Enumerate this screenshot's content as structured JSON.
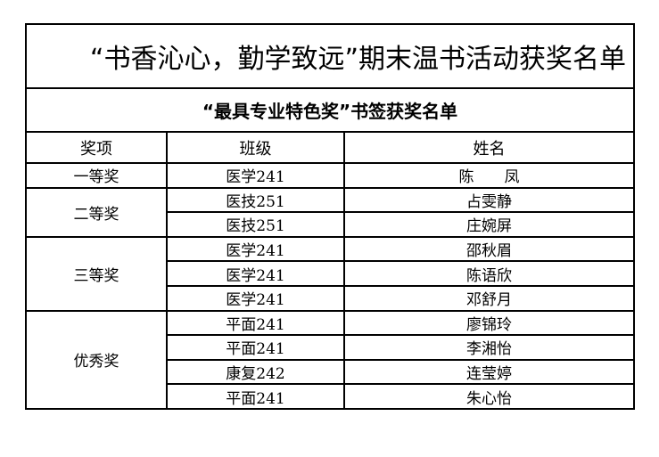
{
  "title": "“书香沁心，勤学致远”期末温书活动获奖名单",
  "subtitle": "“最具专业特色奖”书签获奖名单",
  "headers": [
    "奖项",
    "班级",
    "姓名"
  ],
  "groups": [
    {
      "award": "一等奖",
      "rows": [
        {
          "class": "医学241",
          "name": "陈　　凤"
        }
      ]
    },
    {
      "award": "二等奖",
      "rows": [
        {
          "class": "医技251",
          "name": "占雯静"
        },
        {
          "class": "医技251",
          "name": "庄婉屏"
        }
      ]
    },
    {
      "award": "三等奖",
      "rows": [
        {
          "class": "医学241",
          "name": "邵秋眉"
        },
        {
          "class": "医学241",
          "name": "陈语欣"
        },
        {
          "class": "医学241",
          "name": "邓舒月"
        }
      ]
    },
    {
      "award": "优秀奖",
      "rows": [
        {
          "class": "平面241",
          "name": "廖锦玲"
        },
        {
          "class": "平面241",
          "name": "李湘怡"
        },
        {
          "class": "康复242",
          "name": "连莹婷"
        },
        {
          "class": "平面241",
          "name": "朱心怡"
        }
      ]
    }
  ]
}
